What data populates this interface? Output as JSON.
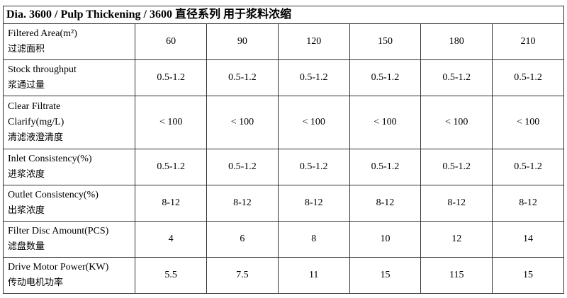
{
  "title": "Dia. 3600 / Pulp Thickening / 3600 直径系列  用于浆料浓缩",
  "columns": [
    "60",
    "90",
    "120",
    "150",
    "180",
    "210"
  ],
  "rows": [
    {
      "en": "Filtered Area(m²)",
      "zh": "过滤面积",
      "values": [
        "60",
        "90",
        "120",
        "150",
        "180",
        "210"
      ]
    },
    {
      "en": "Stock throughput",
      "zh": "浆通过量",
      "values": [
        "0.5-1.2",
        "0.5-1.2",
        "0.5-1.2",
        "0.5-1.2",
        "0.5-1.2",
        "0.5-1.2"
      ]
    },
    {
      "en1": "Clear Filtrate",
      "en2": "Clarify(mg/L)",
      "zh": "清滤液澄清度",
      "values": [
        "< 100",
        "< 100",
        "< 100",
        "< 100",
        "< 100",
        "< 100"
      ]
    },
    {
      "en": "Inlet Consistency(%)",
      "zh": "进浆浓度",
      "values": [
        "0.5-1.2",
        "0.5-1.2",
        "0.5-1.2",
        "0.5-1.2",
        "0.5-1.2",
        "0.5-1.2"
      ]
    },
    {
      "en": "Outlet Consistency(%)",
      "zh": "出浆浓度",
      "values": [
        "8-12",
        "8-12",
        "8-12",
        "8-12",
        "8-12",
        "8-12"
      ]
    },
    {
      "en": "Filter Disc Amount(PCS)",
      "zh": "滤盘数量",
      "values": [
        "4",
        "6",
        "8",
        "10",
        "12",
        "14"
      ]
    },
    {
      "en": "Drive Motor Power(KW)",
      "zh": "传动电机功率",
      "values": [
        "5.5",
        "7.5",
        "11",
        "15",
        "115",
        "15"
      ]
    }
  ]
}
